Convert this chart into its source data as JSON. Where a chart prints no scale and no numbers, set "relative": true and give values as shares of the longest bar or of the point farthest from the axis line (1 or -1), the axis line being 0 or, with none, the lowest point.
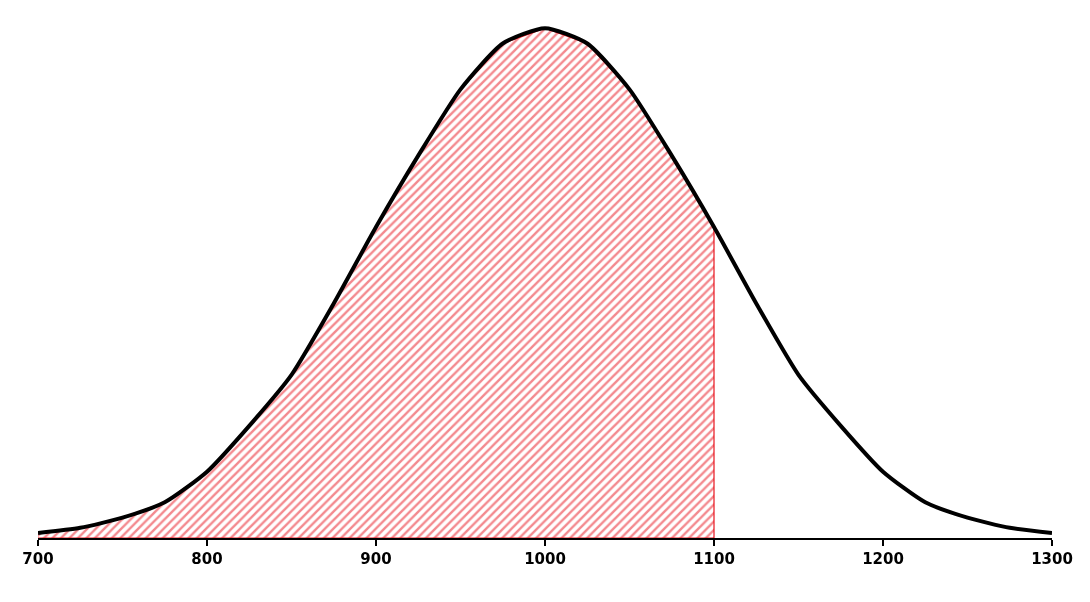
{
  "chart_data": {
    "type": "line",
    "relative": true,
    "xlim": [
      700,
      1300
    ],
    "xticks": [
      700,
      800,
      900,
      1000,
      1100,
      1200,
      1300
    ],
    "grid": false,
    "marker": "none",
    "series": [
      {
        "type": "area",
        "color": "#e8141e",
        "x": [
          700,
          725,
          750,
          775,
          800,
          825,
          850,
          875,
          900,
          925,
          950,
          975,
          1000,
          1025,
          1050,
          1075,
          1100
        ],
        "values": [
          0.01,
          0.02,
          0.04,
          0.07,
          0.13,
          0.22,
          0.32,
          0.46,
          0.61,
          0.75,
          0.88,
          0.97,
          1.0,
          0.97,
          0.88,
          0.75,
          0.61
        ]
      },
      {
        "color": "#000000",
        "line_style": "solid",
        "x": [
          700,
          725,
          750,
          775,
          800,
          825,
          850,
          875,
          900,
          925,
          950,
          975,
          1000,
          1025,
          1050,
          1075,
          1100,
          1125,
          1150,
          1175,
          1200,
          1225,
          1250,
          1275,
          1300
        ],
        "values": [
          0.01,
          0.02,
          0.04,
          0.07,
          0.13,
          0.22,
          0.32,
          0.46,
          0.61,
          0.75,
          0.88,
          0.97,
          1.0,
          0.97,
          0.88,
          0.75,
          0.61,
          0.46,
          0.32,
          0.22,
          0.13,
          0.07,
          0.04,
          0.02,
          0.01
        ]
      }
    ]
  }
}
